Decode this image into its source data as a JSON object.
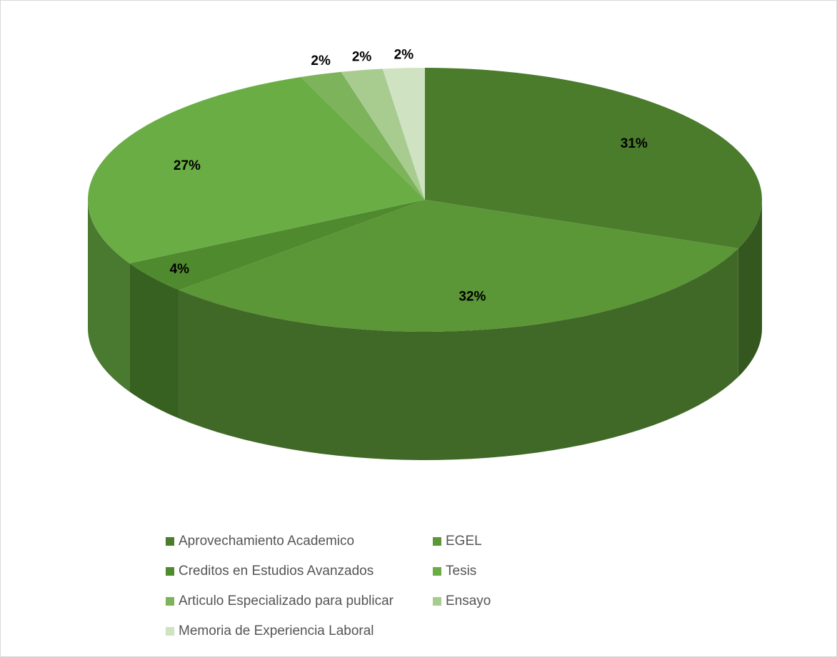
{
  "chart_data": {
    "type": "pie3d",
    "categories": [
      "Aprovechamiento Academico",
      "EGEL",
      "Creditos en Estudios Avanzados",
      "Tesis",
      "Articulo Especializado para publicar",
      "Ensayo",
      "Memoria  de Experiencia Laboral"
    ],
    "values": [
      31,
      32,
      4,
      27,
      2,
      2,
      2
    ],
    "value_labels": [
      "31%",
      "32%",
      "4%",
      "27%",
      "2%",
      "2%",
      "2%"
    ],
    "colors": [
      "#4a7c2c",
      "#5b9637",
      "#4f8a2e",
      "#6aad45",
      "#7db35a",
      "#a8cc90",
      "#cfe3c2"
    ],
    "legend": "bottom"
  }
}
